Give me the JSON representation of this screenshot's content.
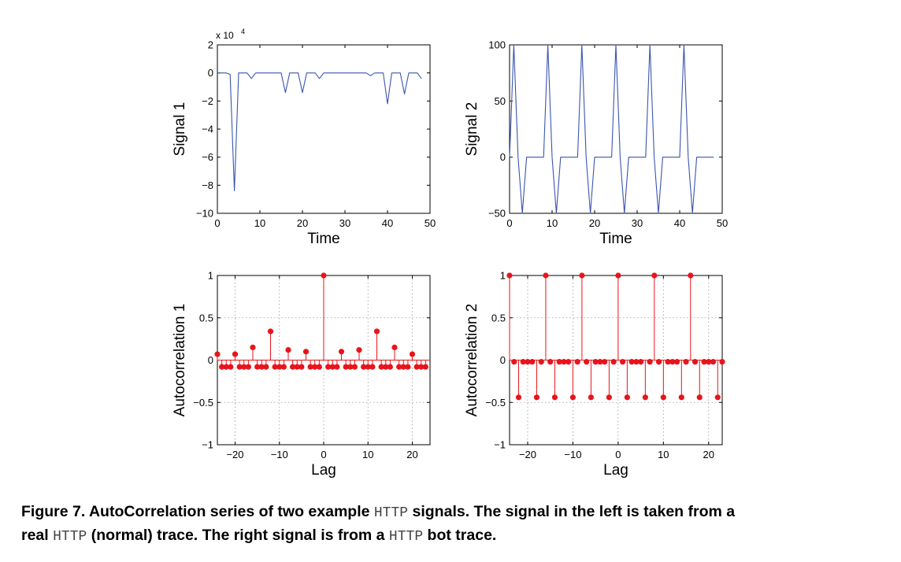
{
  "chart_data": [
    {
      "type": "line",
      "ylabel": "Signal 1",
      "xlabel": "Time",
      "exponent_label": "x 10",
      "exponent_power": "4",
      "xlim": [
        0,
        50
      ],
      "ylim": [
        -10,
        2
      ],
      "xticks": [
        0,
        10,
        20,
        30,
        40,
        50
      ],
      "yticks": [
        -10,
        -8,
        -6,
        -4,
        -2,
        0,
        2
      ],
      "color": "#3a55b0",
      "series": [
        {
          "x": [
            0,
            1,
            2,
            3,
            4,
            5,
            6,
            7,
            8,
            9,
            10,
            11,
            12,
            13,
            14,
            15,
            16,
            17,
            18,
            19,
            20,
            21,
            22,
            23,
            24,
            25,
            26,
            27,
            28,
            29,
            30,
            31,
            32,
            33,
            34,
            35,
            36,
            37,
            38,
            39,
            40,
            41,
            42,
            43,
            44,
            45,
            46,
            47,
            48
          ],
          "values": [
            0,
            0,
            0,
            -0.1,
            -8.4,
            0,
            0,
            0,
            -0.4,
            0,
            0,
            0,
            0,
            0,
            0,
            0,
            -1.4,
            0,
            0,
            0,
            -1.4,
            0,
            0,
            0,
            -0.4,
            0,
            0,
            0,
            0,
            0,
            0,
            0,
            0,
            0,
            0,
            0,
            -0.2,
            0,
            0,
            0,
            -2.2,
            0,
            0,
            0,
            -1.5,
            0,
            0,
            0,
            -0.4
          ]
        }
      ]
    },
    {
      "type": "line",
      "ylabel": "Signal 2",
      "xlabel": "Time",
      "xlim": [
        0,
        50
      ],
      "ylim": [
        -50,
        100
      ],
      "xticks": [
        0,
        10,
        20,
        30,
        40,
        50
      ],
      "yticks": [
        -50,
        0,
        50,
        100
      ],
      "color": "#3a55b0",
      "series": [
        {
          "x": [
            0,
            1,
            2,
            3,
            4,
            5,
            6,
            7,
            8,
            9,
            10,
            11,
            12,
            13,
            14,
            15,
            16,
            17,
            18,
            19,
            20,
            21,
            22,
            23,
            24,
            25,
            26,
            27,
            28,
            29,
            30,
            31,
            32,
            33,
            34,
            35,
            36,
            37,
            38,
            39,
            40,
            41,
            42,
            43,
            44,
            45,
            46,
            47,
            48
          ],
          "values": [
            0,
            100,
            0,
            -50,
            0,
            0,
            0,
            0,
            0,
            100,
            0,
            -50,
            0,
            0,
            0,
            0,
            0,
            100,
            0,
            -50,
            0,
            0,
            0,
            0,
            0,
            100,
            0,
            -50,
            0,
            0,
            0,
            0,
            0,
            100,
            0,
            -50,
            0,
            0,
            0,
            0,
            0,
            100,
            0,
            -50,
            0,
            0,
            0,
            0,
            0
          ]
        }
      ]
    },
    {
      "type": "stem",
      "ylabel": "Autocorrelation 1",
      "xlabel": "Lag",
      "xlim": [
        -24,
        24
      ],
      "ylim": [
        -1,
        1
      ],
      "xticks": [
        -20,
        -10,
        0,
        10,
        20
      ],
      "yticks": [
        -1,
        -0.5,
        0,
        0.5,
        1
      ],
      "color": "#e8141c",
      "series": [
        {
          "x": [
            -24,
            -23,
            -22,
            -21,
            -20,
            -19,
            -18,
            -17,
            -16,
            -15,
            -14,
            -13,
            -12,
            -11,
            -10,
            -9,
            -8,
            -7,
            -6,
            -5,
            -4,
            -3,
            -2,
            -1,
            0,
            1,
            2,
            3,
            4,
            5,
            6,
            7,
            8,
            9,
            10,
            11,
            12,
            13,
            14,
            15,
            16,
            17,
            18,
            19,
            20,
            21,
            22,
            23
          ],
          "values": [
            0.07,
            -0.08,
            -0.08,
            -0.08,
            0.07,
            -0.08,
            -0.08,
            -0.08,
            0.15,
            -0.08,
            -0.08,
            -0.08,
            0.34,
            -0.08,
            -0.08,
            -0.08,
            0.12,
            -0.08,
            -0.08,
            -0.08,
            0.1,
            -0.08,
            -0.08,
            -0.08,
            1.0,
            -0.08,
            -0.08,
            -0.08,
            0.1,
            -0.08,
            -0.08,
            -0.08,
            0.12,
            -0.08,
            -0.08,
            -0.08,
            0.34,
            -0.08,
            -0.08,
            -0.08,
            0.15,
            -0.08,
            -0.08,
            -0.08,
            0.07,
            -0.08,
            -0.08,
            -0.08
          ]
        }
      ]
    },
    {
      "type": "stem",
      "ylabel": "Autocorrelation 2",
      "xlabel": "Lag",
      "xlim": [
        -24,
        23
      ],
      "ylim": [
        -1,
        1
      ],
      "xticks": [
        -20,
        -10,
        0,
        10,
        20
      ],
      "yticks": [
        -1,
        -0.5,
        0,
        0.5,
        1
      ],
      "color": "#e8141c",
      "series": [
        {
          "x": [
            -24,
            -23,
            -22,
            -21,
            -20,
            -19,
            -18,
            -17,
            -16,
            -15,
            -14,
            -13,
            -12,
            -11,
            -10,
            -9,
            -8,
            -7,
            -6,
            -5,
            -4,
            -3,
            -2,
            -1,
            0,
            1,
            2,
            3,
            4,
            5,
            6,
            7,
            8,
            9,
            10,
            11,
            12,
            13,
            14,
            15,
            16,
            17,
            18,
            19,
            20,
            21,
            22,
            23
          ],
          "values": [
            1.0,
            -0.02,
            -0.44,
            -0.02,
            -0.02,
            -0.02,
            -0.44,
            -0.02,
            1.0,
            -0.02,
            -0.44,
            -0.02,
            -0.02,
            -0.02,
            -0.44,
            -0.02,
            1.0,
            -0.02,
            -0.44,
            -0.02,
            -0.02,
            -0.02,
            -0.44,
            -0.02,
            1.0,
            -0.02,
            -0.44,
            -0.02,
            -0.02,
            -0.02,
            -0.44,
            -0.02,
            1.0,
            -0.02,
            -0.44,
            -0.02,
            -0.02,
            -0.02,
            -0.44,
            -0.02,
            1.0,
            -0.02,
            -0.44,
            -0.02,
            -0.02,
            -0.02,
            -0.44,
            -0.02
          ]
        }
      ]
    }
  ],
  "caption": {
    "part1": "Figure 7. AutoCorrelation series of two example ",
    "code1": "HTTP",
    "part2": " signals.  The signal in the left is taken from a",
    "part3": "real ",
    "code2": "HTTP",
    "part4": " (normal) trace. The right signal is from a ",
    "code3": "HTTP",
    "part5": " bot trace."
  }
}
